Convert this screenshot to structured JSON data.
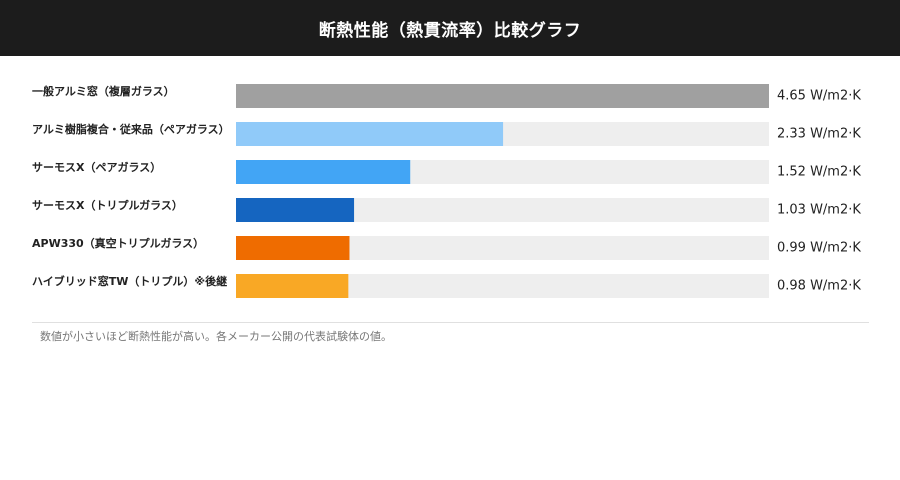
{
  "header": {
    "title": "断熱性能（熱貫流率）比較グラフ"
  },
  "footnote": "数値が小さいほど断熱性能が高い。各メーカー公開の代表試験体の値。",
  "chart_data": {
    "type": "bar",
    "orientation": "horizontal",
    "title": "断熱性能（熱貫流率）比較グラフ",
    "xlim": [
      0,
      4.65
    ],
    "grid": false,
    "legend": "none",
    "track_color": "#eeeeee",
    "unit": "W/m2·K",
    "categories": [
      "一般アルミ窓（複層ガラス）",
      "アルミ樹脂複合・従来品（ペアガラス）",
      "サーモスX（ペアガラス）",
      "サーモスX（トリプルガラス）",
      "APW330（真空トリプルガラス）",
      "ハイブリッド窓TW（トリプル）※後継"
    ],
    "values": [
      4.65,
      2.33,
      1.52,
      1.03,
      0.99,
      0.98
    ],
    "value_labels": [
      "4.65 W/m2·K",
      "2.33 W/m2·K",
      "1.52 W/m2·K",
      "1.03 W/m2·K",
      "0.99 W/m2·K",
      "0.98 W/m2·K"
    ],
    "colors": [
      "#a0a0a0",
      "#90caf9",
      "#42a5f5",
      "#1565c0",
      "#ef6c00",
      "#f9a825"
    ]
  }
}
